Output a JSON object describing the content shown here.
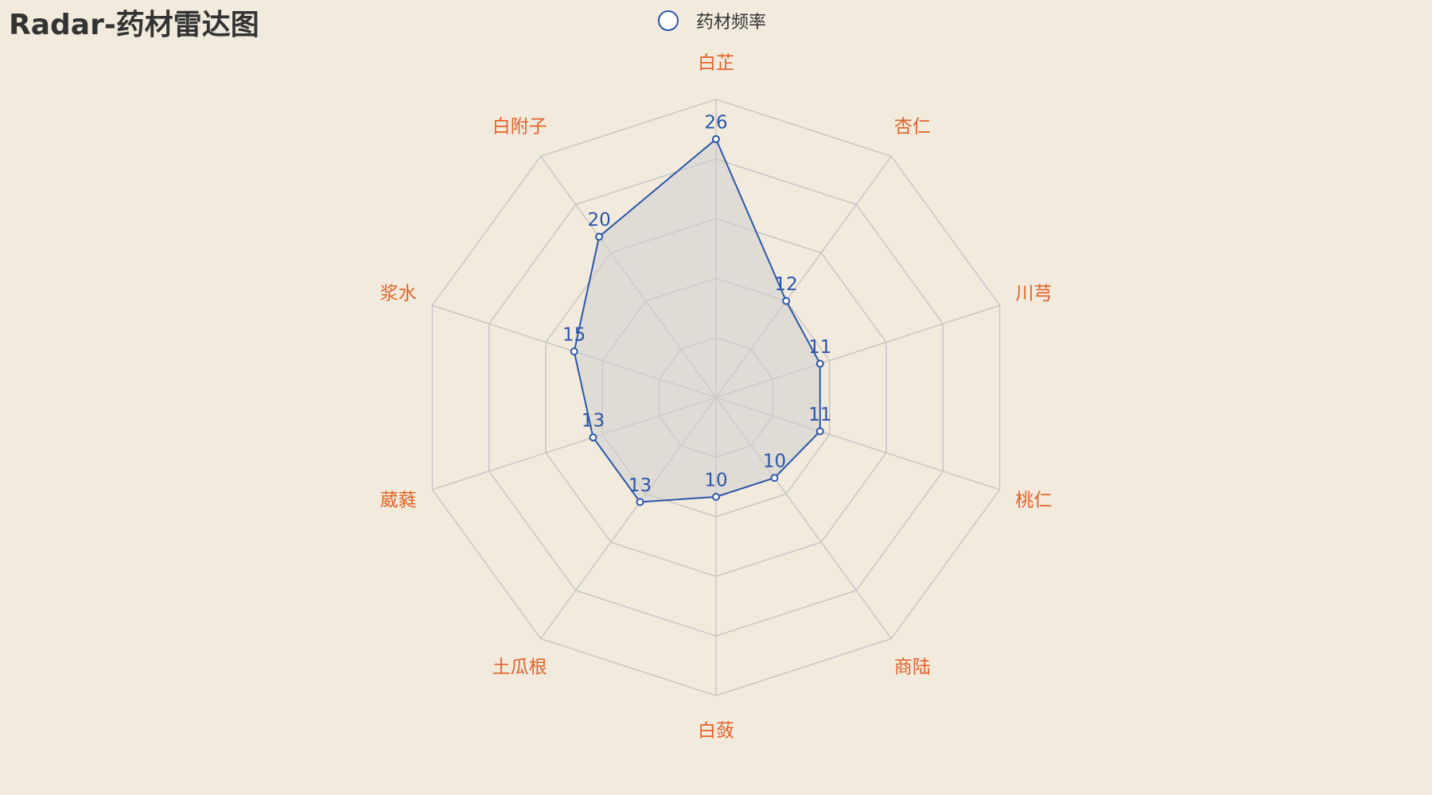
{
  "chart_data": {
    "type": "radar",
    "title": "Radar-药材雷达图",
    "legend_position": "top-center",
    "max": 30,
    "split_number": 5,
    "indicators": [
      "白芷",
      "杏仁",
      "川芎",
      "桃仁",
      "商陆",
      "白蔹",
      "土瓜根",
      "葳蕤",
      "浆水",
      "白附子"
    ],
    "series": [
      {
        "name": "药材频率",
        "values": [
          26,
          12,
          11,
          11,
          10,
          10,
          13,
          13,
          15,
          20
        ]
      }
    ],
    "colors": {
      "series_line": "#2b56a8",
      "series_fill": "#d0d0d0",
      "indicator_label": "#e2622a",
      "grid": "#c8c5c3",
      "background": "#f2ebdd"
    },
    "value_labels_shown": true
  }
}
